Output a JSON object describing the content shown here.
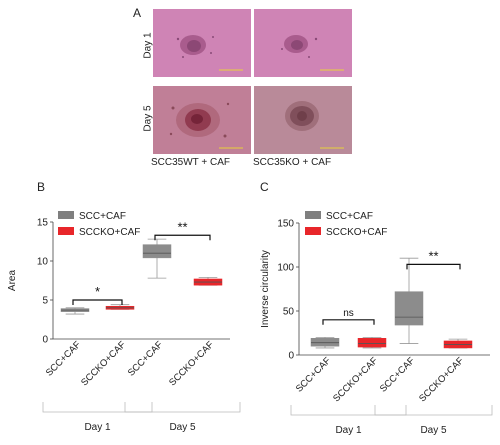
{
  "panelA": {
    "label": "A",
    "rows": [
      "Day 1",
      "Day 5"
    ],
    "captions": [
      "SCC35WT + CAF",
      "SCC35KO + CAF"
    ],
    "colors": {
      "day1": "#cf84b5",
      "day5_wt": "#c07f97",
      "day5_ko": "#b98a99"
    }
  },
  "panelB": {
    "label": "B"
  },
  "panelC": {
    "label": "C"
  },
  "chart_data": [
    {
      "type": "boxplot",
      "ylabel": "Area",
      "ylim": [
        0,
        15
      ],
      "yticks": [
        0,
        5,
        10,
        15
      ],
      "categories": [
        "SCC+CAF",
        "SCCKO+CAF",
        "SCC+CAF",
        "SCCKO+CAF"
      ],
      "groups": [
        {
          "name": "Day 1",
          "categories": [
            0,
            1
          ]
        },
        {
          "name": "Day 5",
          "categories": [
            2,
            3
          ]
        }
      ],
      "legend": [
        {
          "name": "SCC+CAF",
          "color": "#7f7f7f"
        },
        {
          "name": "SCCKO+CAF",
          "color": "#e8262a"
        }
      ],
      "series": [
        {
          "name": "SCC+CAF",
          "color": "#8c8c8c",
          "box": {
            "min": 3.2,
            "q1": 3.5,
            "median": 3.7,
            "q3": 3.9,
            "max": 4.0
          }
        },
        {
          "name": "SCCKO+CAF",
          "color": "#e8262a",
          "box": {
            "min": 3.8,
            "q1": 3.8,
            "median": 4.0,
            "q3": 4.2,
            "max": 4.4
          }
        },
        {
          "name": "SCC+CAF",
          "color": "#8c8c8c",
          "box": {
            "min": 7.8,
            "q1": 10.4,
            "median": 11.0,
            "q3": 12.1,
            "max": 12.8
          }
        },
        {
          "name": "SCCKO+CAF",
          "color": "#e8262a",
          "box": {
            "min": 6.9,
            "q1": 6.9,
            "median": 7.3,
            "q3": 7.7,
            "max": 7.9
          }
        }
      ],
      "significance": [
        {
          "pair": [
            0,
            1
          ],
          "y": 5.0,
          "text": "*"
        },
        {
          "pair": [
            2,
            3
          ],
          "y": 13.3,
          "text": "**"
        }
      ]
    },
    {
      "type": "boxplot",
      "ylabel": "Inverse circularity",
      "ylim": [
        0,
        150
      ],
      "yticks": [
        0,
        50,
        100,
        150
      ],
      "categories": [
        "SCC+CAF",
        "SCCKO+CAF",
        "SCC+CAF",
        "SCCKO+CAF"
      ],
      "groups": [
        {
          "name": "Day 1",
          "categories": [
            0,
            1
          ]
        },
        {
          "name": "Day 5",
          "categories": [
            2,
            3
          ]
        }
      ],
      "legend": [
        {
          "name": "SCC+CAF",
          "color": "#7f7f7f"
        },
        {
          "name": "SCCKO+CAF",
          "color": "#e8262a"
        }
      ],
      "series": [
        {
          "name": "SCC+CAF",
          "color": "#8c8c8c",
          "box": {
            "min": 8,
            "q1": 10,
            "median": 14,
            "q3": 19,
            "max": 20
          }
        },
        {
          "name": "SCCKO+CAF",
          "color": "#e8262a",
          "box": {
            "min": 8,
            "q1": 9,
            "median": 13,
            "q3": 19,
            "max": 20
          }
        },
        {
          "name": "SCC+CAF",
          "color": "#8c8c8c",
          "box": {
            "min": 13,
            "q1": 34,
            "median": 43,
            "q3": 72,
            "max": 110
          }
        },
        {
          "name": "SCCKO+CAF",
          "color": "#e8262a",
          "box": {
            "min": 8,
            "q1": 8,
            "median": 12,
            "q3": 16,
            "max": 18
          }
        }
      ],
      "significance": [
        {
          "pair": [
            0,
            1
          ],
          "y": 40,
          "text": "ns"
        },
        {
          "pair": [
            2,
            3
          ],
          "y": 103,
          "text": "**"
        }
      ]
    }
  ]
}
